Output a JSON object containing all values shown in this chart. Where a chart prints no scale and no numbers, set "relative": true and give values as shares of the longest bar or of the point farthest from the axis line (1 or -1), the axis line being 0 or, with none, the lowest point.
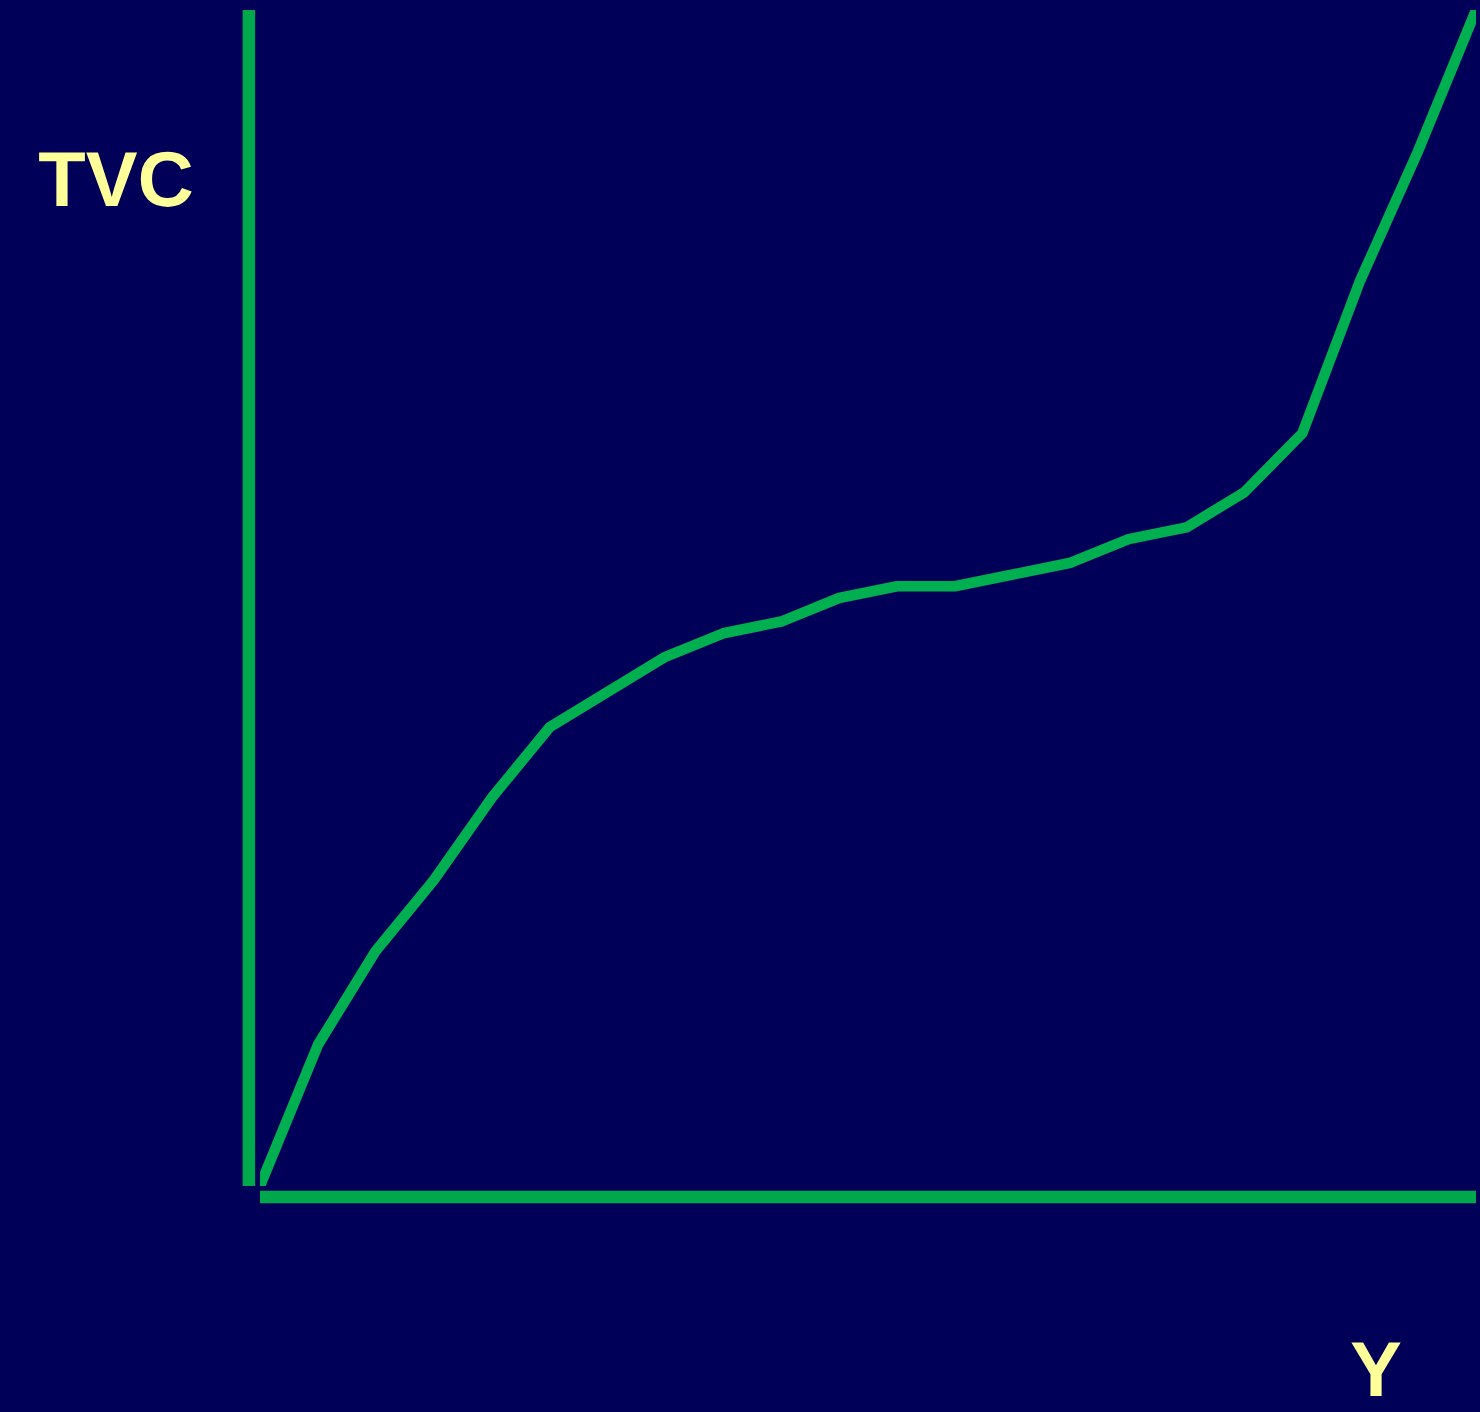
{
  "chart_data": {
    "type": "line",
    "relative": true,
    "ylabel": "TVC",
    "xlabel": "Y",
    "categories": [
      null,
      null,
      null,
      null,
      null,
      null,
      null,
      null,
      null,
      null,
      null,
      null,
      null,
      null,
      null,
      null,
      null,
      null,
      null,
      null,
      null,
      null
    ],
    "series": [
      {
        "color": "#00b050",
        "values": [
          0.0,
          0.12,
          0.2,
          0.26,
          0.33,
          0.39,
          0.42,
          0.45,
          0.47,
          0.48,
          0.5,
          0.51,
          0.51,
          0.52,
          0.53,
          0.55,
          0.56,
          0.59,
          0.64,
          0.77,
          0.88,
          1.0
        ]
      }
    ],
    "marker": "none",
    "line_style": "solid",
    "legend": false
  }
}
